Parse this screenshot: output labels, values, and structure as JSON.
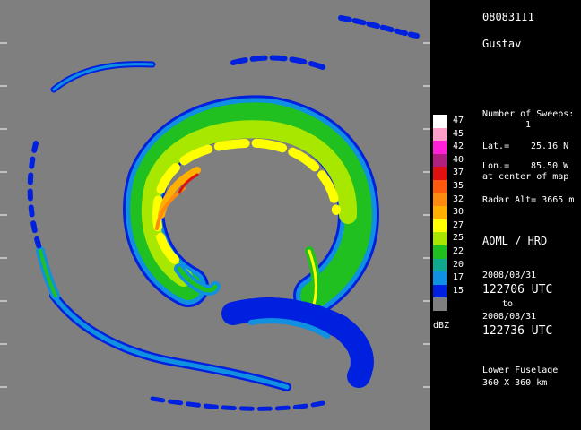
{
  "flight_id": "080831I1",
  "storm_name": "Gustav",
  "sweeps": {
    "label": "Number of Sweeps:",
    "value": "1"
  },
  "position": {
    "lat_label": "Lat.=",
    "lat_value": "25.16 N",
    "lon_label": "Lon.=",
    "lon_value": "85.50 W",
    "note": "at center of map"
  },
  "radar_alt": "Radar Alt= 3665 m",
  "org": "AOML / HRD",
  "time": {
    "start_date": "2008/08/31",
    "start_time": "122706 UTC",
    "to": "to",
    "end_date": "2008/08/31",
    "end_time": "122736 UTC"
  },
  "radar_type": "Lower Fuselage",
  "domain_size": "360 X 360 km",
  "legend": {
    "unit": "dBZ",
    "entries": [
      {
        "label": "47",
        "color": "#ffffff"
      },
      {
        "label": "45",
        "color": "#ff9ec8"
      },
      {
        "label": "42",
        "color": "#ff20d8"
      },
      {
        "label": "40",
        "color": "#b02080"
      },
      {
        "label": "37",
        "color": "#e01010"
      },
      {
        "label": "35",
        "color": "#ff5a10"
      },
      {
        "label": "32",
        "color": "#ff8a10"
      },
      {
        "label": "30",
        "color": "#ffb000"
      },
      {
        "label": "27",
        "color": "#ffff00"
      },
      {
        "label": "25",
        "color": "#a8e800"
      },
      {
        "label": "22",
        "color": "#20c020"
      },
      {
        "label": "20",
        "color": "#10a890"
      },
      {
        "label": "17",
        "color": "#1090e0"
      },
      {
        "label": "15",
        "color": "#0020e0"
      },
      {
        "label": "",
        "color": "#7f7f7f"
      }
    ]
  },
  "colors": {
    "background": "#7f7f7f",
    "panel": "#000000"
  }
}
